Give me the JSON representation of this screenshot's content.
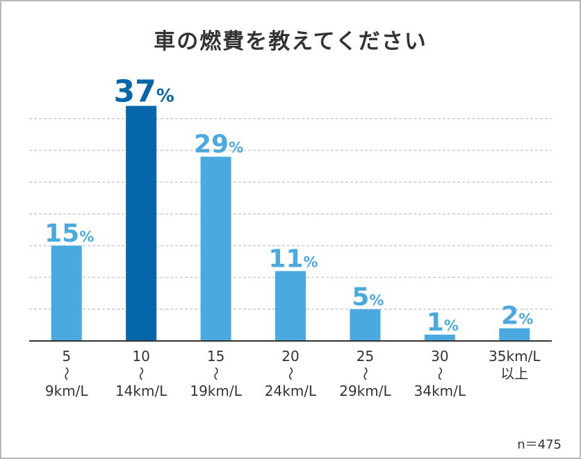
{
  "chart_data": {
    "type": "bar",
    "title": "車の燃費を教えてください",
    "categories": [
      [
        "5",
        "〜",
        "9km/L"
      ],
      [
        "10",
        "〜",
        "14km/L"
      ],
      [
        "15",
        "〜",
        "19km/L"
      ],
      [
        "20",
        "〜",
        "24km/L"
      ],
      [
        "25",
        "〜",
        "29km/L"
      ],
      [
        "30",
        "〜",
        "34km/L"
      ],
      [
        "35km/L",
        "以上"
      ]
    ],
    "values": [
      15,
      37,
      29,
      11,
      5,
      1,
      2
    ],
    "unit": "%",
    "highlight_index": 1,
    "ylim": [
      0,
      40
    ],
    "grid": true,
    "xlabel": "",
    "ylabel": "",
    "colors": {
      "bar": "#4aaadf",
      "highlight": "#0567aa",
      "grid": "#cccccc",
      "axis": "#333333"
    }
  },
  "footnote": "n＝475"
}
